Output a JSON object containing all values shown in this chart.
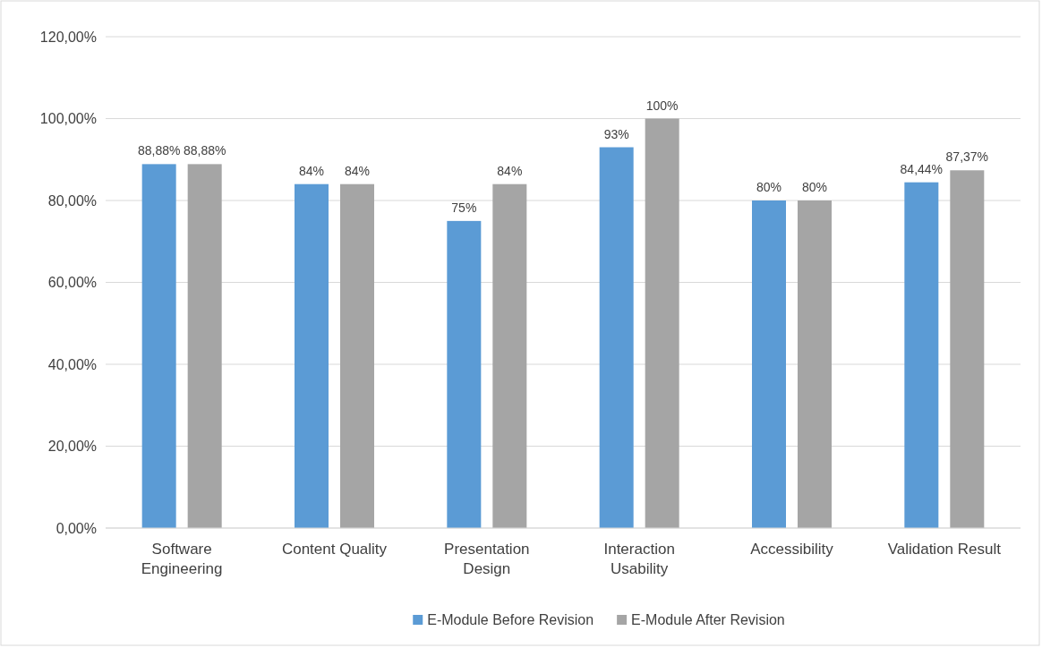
{
  "chart_data": {
    "type": "bar",
    "categories": [
      "Software Engineering",
      "Content Quality",
      "Presentation Design",
      "Interaction Usability",
      "Accessibility",
      "Validation Result"
    ],
    "series": [
      {
        "name": "E-Module Before Revision",
        "color": "#5b9bd5",
        "values": [
          88.88,
          84,
          75,
          93,
          80,
          84.44
        ],
        "value_labels": [
          "88,88%",
          "84%",
          "75%",
          "93%",
          "80%",
          "84,44%"
        ]
      },
      {
        "name": "E-Module After Revision",
        "color": "#a5a5a5",
        "values": [
          88.88,
          84,
          84,
          100,
          80,
          87.37
        ],
        "value_labels": [
          "88,88%",
          "84%",
          "84%",
          "100%",
          "80%",
          "87,37%"
        ]
      }
    ],
    "ylim": [
      0,
      120
    ],
    "yticks": [
      {
        "value": 0,
        "label": "0,00%"
      },
      {
        "value": 20,
        "label": "20,00%"
      },
      {
        "value": 40,
        "label": "40,00%"
      },
      {
        "value": 60,
        "label": "60,00%"
      },
      {
        "value": 80,
        "label": "80,00%"
      },
      {
        "value": 100,
        "label": "100,00%"
      },
      {
        "value": 120,
        "label": "120,00%"
      }
    ],
    "grid": "y",
    "legend": "bottom"
  }
}
